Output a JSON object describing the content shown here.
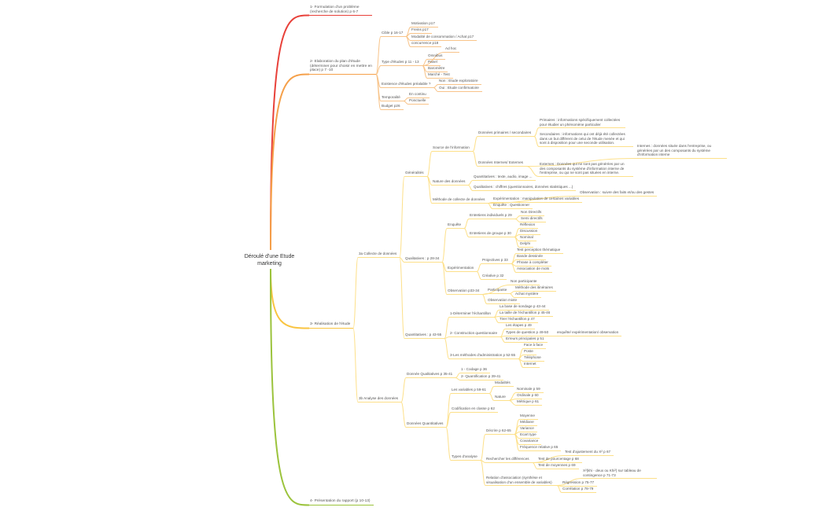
{
  "colors": {
    "branch1": "#e8413a",
    "branch2": "#f5a04a",
    "branch3": "#f9c440",
    "branch4": "#9bc33c"
  },
  "map": {
    "label": "Déroulé d'une Etude marketing",
    "children": [
      {
        "label": "1- Formulation d'un problème (recherche de solution) p 6-7"
      },
      {
        "label": "2- Elaboration du plan d'étude (déterminer pour choisir en mettre en place) p 7 -10",
        "children": [
          {
            "label": "Cible p 16-17",
            "children": [
              {
                "label": "Motivation p17"
              },
              {
                "label": "Freins p17"
              },
              {
                "label": "Modalité de consommation / Achat p17"
              },
              {
                "label": "concurrence p18"
              }
            ]
          },
          {
            "label": "Type d'études p 11 - 13",
            "children": [
              {
                "label": "Ad hoc"
              },
              {
                "label": "Omnibus"
              },
              {
                "label": "Panel"
              },
              {
                "label": "Baromètre"
              },
              {
                "label": "Marché - Test"
              }
            ]
          },
          {
            "label": "Existence d'études préalable ?",
            "children": [
              {
                "label": "Non : Etude exploratoire"
              },
              {
                "label": "Oui : Etude confirmatoire"
              }
            ]
          },
          {
            "label": "Temporalité",
            "children": [
              {
                "label": "En continu"
              },
              {
                "label": "Ponctuelle"
              }
            ]
          },
          {
            "label": "Budget p26"
          }
        ]
      },
      {
        "label": "3- Réalisation de l'étude",
        "children": [
          {
            "label": "3a Collecte de données",
            "children": [
              {
                "label": "Généralités",
                "children": [
                  {
                    "label": "Source de l'information",
                    "children": [
                      {
                        "label": "Données primaires / secondaires",
                        "children": [
                          {
                            "label": "Primaires : informations spécifiquement collectées pour étudier un phénomène particulier"
                          },
                          {
                            "label": "Secondaires : informations qui ont déjà été collectées dans un but différent de celui de l'étude menée et qui sont à disposition pour une seconde utilisation."
                          }
                        ]
                      },
                      {
                        "label": "Données Internes/ Externes",
                        "children": [
                          {
                            "label": "Internes : données située dans l'entreprise, ou générées par un des composants du système d'information interne"
                          },
                          {
                            "label": "Externes : Données qui ne sont pas générées par un des composants du système d'information interne de l'entreprise, ou qui ne sont pas situées en interne."
                          }
                        ]
                      }
                    ]
                  },
                  {
                    "label": "Nature des données",
                    "children": [
                      {
                        "label": "Quantitatives : texte, audio, image ..."
                      },
                      {
                        "label": "Qualitatives : chiffres (questionnaires, données statistiques ...)"
                      }
                    ]
                  },
                  {
                    "label": "Méthode de collecte de données",
                    "children": [
                      {
                        "label": "Observation : suivre des faits et/ou des gestes"
                      },
                      {
                        "label": "Expérimentation : manipulation de certaines variables"
                      },
                      {
                        "label": "Enquête : Questionner"
                      }
                    ]
                  }
                ]
              },
              {
                "label": "Qualitatives : p 28-34",
                "children": [
                  {
                    "label": "Enquête",
                    "children": [
                      {
                        "label": "Entretiens individuels p 29",
                        "children": [
                          {
                            "label": "Non Directifs"
                          },
                          {
                            "label": "Semi directifs"
                          }
                        ]
                      },
                      {
                        "label": "Entretiens de groupe p 30",
                        "children": [
                          {
                            "label": "Réflexion"
                          },
                          {
                            "label": "Discussion"
                          },
                          {
                            "label": "Nominal"
                          },
                          {
                            "label": "Delphi"
                          }
                        ]
                      }
                    ]
                  },
                  {
                    "label": "Expérimentation",
                    "children": [
                      {
                        "label": "Projectives p 33",
                        "children": [
                          {
                            "label": "Test perception thématique"
                          },
                          {
                            "label": "Bande dessinée"
                          },
                          {
                            "label": "Phrase à compléter"
                          },
                          {
                            "label": "Association de mots"
                          }
                        ]
                      },
                      {
                        "label": "Créative p 32"
                      }
                    ]
                  },
                  {
                    "label": "Observation p33-34",
                    "children": [
                      {
                        "label": "Non participante"
                      },
                      {
                        "label": "Participante",
                        "children": [
                          {
                            "label": "Méthode des itinéraires"
                          },
                          {
                            "label": "Achat mystère"
                          }
                        ]
                      },
                      {
                        "label": "Observation mixte"
                      }
                    ]
                  }
                ]
              },
              {
                "label": "Quantitatives : p 43-55",
                "children": [
                  {
                    "label": "1-Déterminer l'échantillon",
                    "children": [
                      {
                        "label": "La base de sondage p 43-44"
                      },
                      {
                        "label": "La taille de l'échantillon p 45-46"
                      },
                      {
                        "label": "Tirer l'échantillon p 47"
                      }
                    ]
                  },
                  {
                    "label": "2- Construction questionnaire",
                    "children": [
                      {
                        "label": "Les étapes p 49"
                      },
                      {
                        "label": "Types de question p 49-50",
                        "children": [
                          {
                            "label": "enquête/ expérimentation/ observation"
                          }
                        ]
                      },
                      {
                        "label": "Erreurs principales p 51"
                      }
                    ]
                  },
                  {
                    "label": "3-Les méthodes d'administration p 52-55",
                    "children": [
                      {
                        "label": "Face à face"
                      },
                      {
                        "label": "Poste"
                      },
                      {
                        "label": "Téléphone"
                      },
                      {
                        "label": "Internet"
                      }
                    ]
                  }
                ]
              }
            ]
          },
          {
            "label": "3b Analyse des données",
            "children": [
              {
                "label": "Donnée Qualitatives p 35-41",
                "children": [
                  {
                    "label": "1 - Codage p 36"
                  },
                  {
                    "label": "2- Quantification p 39-41"
                  }
                ]
              },
              {
                "label": "Données Quantitatives",
                "children": [
                  {
                    "label": "Les variables p 59-61",
                    "children": [
                      {
                        "label": "Modalités"
                      },
                      {
                        "label": "Nature",
                        "children": [
                          {
                            "label": "Nominale p 59"
                          },
                          {
                            "label": "Ordinale p 60"
                          },
                          {
                            "label": "Métrique p 61"
                          }
                        ]
                      }
                    ]
                  },
                  {
                    "label": "Codification en classe p 62"
                  },
                  {
                    "label": "Types d'analyse",
                    "children": [
                      {
                        "label": "Décrire p 62-65",
                        "children": [
                          {
                            "label": "Moyenne"
                          },
                          {
                            "label": "Médiane"
                          },
                          {
                            "label": "Variance"
                          },
                          {
                            "label": "Ecart type"
                          },
                          {
                            "label": "Covariance"
                          },
                          {
                            "label": "Fréquence relative p 65"
                          }
                        ]
                      },
                      {
                        "label": "Rechercher les différences",
                        "children": [
                          {
                            "label": "Test d'ajustement du Χ² p 67"
                          },
                          {
                            "label": "Test de pourcentage p 68"
                          },
                          {
                            "label": "Test de moyennes p 69"
                          }
                        ]
                      },
                      {
                        "label": "Relation d'association (synthèse et visualisation d'un ensemble de variables)",
                        "children": [
                          {
                            "label": "Χ²(khi - deux ou Khi²) sur tableau de contingence p 71-73"
                          },
                          {
                            "label": "Régression p 75-77"
                          },
                          {
                            "label": "Corrélation p 78-79"
                          }
                        ]
                      }
                    ]
                  }
                ]
              }
            ]
          }
        ]
      },
      {
        "label": "4- Présentation du rapport (p 10-13)"
      }
    ]
  }
}
